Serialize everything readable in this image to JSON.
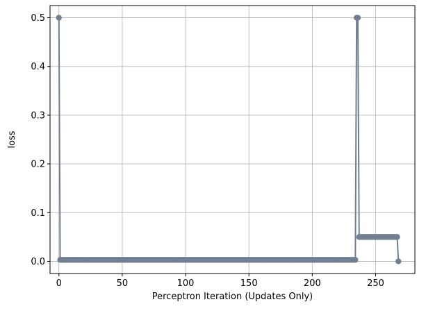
{
  "chart_data": {
    "type": "line",
    "title": "",
    "xlabel": "Perceptron Iteration (Updates Only)",
    "ylabel": "loss",
    "xlim": [
      -7,
      281
    ],
    "ylim": [
      -0.025,
      0.525
    ],
    "xticks": [
      0,
      50,
      100,
      150,
      200,
      250
    ],
    "yticks": [
      0.0,
      0.1,
      0.2,
      0.3,
      0.4,
      0.5
    ],
    "ytick_labels": [
      "0.0",
      "0.1",
      "0.2",
      "0.3",
      "0.4",
      "0.5"
    ],
    "grid": true,
    "legend": "none",
    "series": [
      {
        "color": "#708090",
        "marker": "circle",
        "segments": [
          {
            "x_start": 0,
            "x_end": 0,
            "y": 0.5
          },
          {
            "x_start": 1,
            "x_end": 234,
            "y": 0.003
          },
          {
            "x_start": 235,
            "x_end": 236,
            "y": 0.5
          },
          {
            "x_start": 237,
            "x_end": 267,
            "y": 0.05
          },
          {
            "x_start": 268,
            "x_end": 268,
            "y": 0.0
          }
        ]
      }
    ]
  }
}
